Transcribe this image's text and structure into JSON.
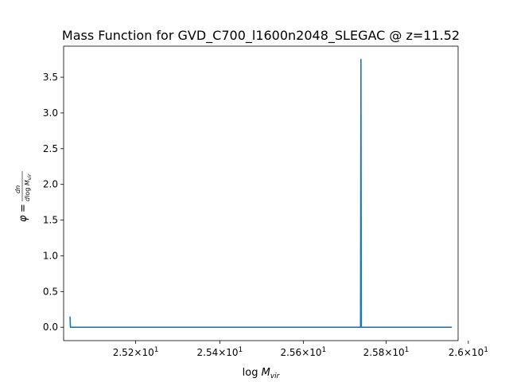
{
  "chart_data": {
    "type": "line",
    "title": "Mass Function for GVD_C700_l1600n2048_SLEGAC @ z=11.52",
    "xlabel": "log M_vir",
    "ylabel": "φ = dn / dlog M_vir",
    "xscale": "log",
    "xlim": [
      25.03,
      25.975
    ],
    "ylim": [
      -0.187,
      3.935
    ],
    "xticks": [
      25.2,
      25.4,
      25.6,
      25.8,
      26.0
    ],
    "xtick_labels": [
      {
        "mant": "2.52",
        "exp": "1"
      },
      {
        "mant": "2.54",
        "exp": "1"
      },
      {
        "mant": "2.56",
        "exp": "1"
      },
      {
        "mant": "2.58",
        "exp": "1"
      },
      {
        "mant": "2.6",
        "exp": "1"
      }
    ],
    "yticks": [
      0.0,
      0.5,
      1.0,
      1.5,
      2.0,
      2.5,
      3.0,
      3.5
    ],
    "ytick_labels": [
      "0.0",
      "0.5",
      "1.0",
      "1.5",
      "2.0",
      "2.5",
      "3.0",
      "3.5"
    ],
    "grid": false,
    "series": [
      {
        "color": "#1f77b4",
        "x": [
          25.045,
          25.046,
          25.3,
          25.5,
          25.738,
          25.739,
          25.74,
          25.75,
          25.96
        ],
        "y": [
          0.15,
          0.0,
          0.0,
          0.0,
          0.0,
          3.75,
          0.0,
          0.0,
          0.0
        ]
      }
    ]
  }
}
